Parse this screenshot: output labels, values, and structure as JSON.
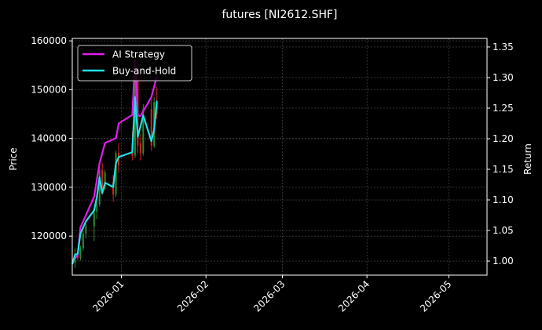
{
  "chart_data": {
    "type": "line",
    "title": "futures [NI2612.SHF]",
    "ylabel_left": "Price",
    "ylabel_right": "Return",
    "x_range": [
      "2025-12-14",
      "2026-05-15"
    ],
    "y_left_range": [
      112000,
      160500
    ],
    "y_right_range": [
      0.977,
      1.364
    ],
    "x_ticks": [
      "2026-01",
      "2026-02",
      "2026-03",
      "2026-04",
      "2026-05"
    ],
    "y_left_ticks": [
      120000,
      130000,
      140000,
      150000,
      160000
    ],
    "y_left_tick_labels": [
      "120000",
      "130000",
      "140000",
      "150000",
      "160000"
    ],
    "y_right_ticks": [
      1.0,
      1.05,
      1.1,
      1.15,
      1.2,
      1.25,
      1.3,
      1.35
    ],
    "y_right_tick_labels": [
      "1.00",
      "1.05",
      "1.10",
      "1.15",
      "1.20",
      "1.25",
      "1.30",
      "1.35"
    ],
    "grid": true,
    "legend_position": "top-left",
    "colors": {
      "background": "#000000",
      "up_candle": "#2e8b2e",
      "down_candle": "#cc2a1f",
      "grid": "#555555"
    },
    "candles": [
      {
        "date": "2025-12-15",
        "open": 114500,
        "high": 117500,
        "low": 113500,
        "close": 116500
      },
      {
        "date": "2025-12-16",
        "open": 116500,
        "high": 117500,
        "low": 115000,
        "close": 115500
      },
      {
        "date": "2025-12-17",
        "open": 115500,
        "high": 118000,
        "low": 115000,
        "close": 117500
      },
      {
        "date": "2025-12-18",
        "open": 117500,
        "high": 121000,
        "low": 117000,
        "close": 120500
      },
      {
        "date": "2025-12-19",
        "open": 120500,
        "high": 123000,
        "low": 119500,
        "close": 122000
      },
      {
        "date": "2025-12-22",
        "open": 122000,
        "high": 125500,
        "low": 119000,
        "close": 125000
      },
      {
        "date": "2025-12-23",
        "open": 125000,
        "high": 127000,
        "low": 123500,
        "close": 126500
      },
      {
        "date": "2025-12-24",
        "open": 126500,
        "high": 134000,
        "low": 126000,
        "close": 133500
      },
      {
        "date": "2025-12-25",
        "open": 133500,
        "high": 135000,
        "low": 128500,
        "close": 130000
      },
      {
        "date": "2025-12-26",
        "open": 130000,
        "high": 133500,
        "low": 129500,
        "close": 133000
      },
      {
        "date": "2025-12-29",
        "open": 131000,
        "high": 132500,
        "low": 127000,
        "close": 128500
      },
      {
        "date": "2025-12-30",
        "open": 128500,
        "high": 137500,
        "low": 128000,
        "close": 137000
      },
      {
        "date": "2025-12-31",
        "open": 137000,
        "high": 139000,
        "low": 133000,
        "close": 134500
      },
      {
        "date": "2026-01-05",
        "open": 139000,
        "high": 141500,
        "low": 135500,
        "close": 136500
      },
      {
        "date": "2026-01-06",
        "open": 136500,
        "high": 157000,
        "low": 136000,
        "close": 156000
      },
      {
        "date": "2026-01-07",
        "open": 155000,
        "high": 157000,
        "low": 137000,
        "close": 138500
      },
      {
        "date": "2026-01-08",
        "open": 139000,
        "high": 141000,
        "low": 135500,
        "close": 137000
      },
      {
        "date": "2026-01-09",
        "open": 137000,
        "high": 147000,
        "low": 136500,
        "close": 146000
      },
      {
        "date": "2026-01-12",
        "open": 146000,
        "high": 148000,
        "low": 137500,
        "close": 138500
      },
      {
        "date": "2026-01-13",
        "open": 138500,
        "high": 148500,
        "low": 138000,
        "close": 147500
      },
      {
        "date": "2026-01-14",
        "open": 147500,
        "high": 150500,
        "low": 144000,
        "close": 145000
      }
    ],
    "series": [
      {
        "name": "AI Strategy",
        "color": "#e11de9",
        "x": [
          "2025-12-14",
          "2025-12-16",
          "2025-12-17",
          "2025-12-22",
          "2025-12-24",
          "2025-12-26",
          "2025-12-30",
          "2025-12-31",
          "2026-01-05",
          "2026-01-06",
          "2026-01-07",
          "2026-01-08",
          "2026-01-12",
          "2026-01-14"
        ],
        "values": [
          1.0,
          1.009,
          1.055,
          1.105,
          1.16,
          1.193,
          1.201,
          1.225,
          1.239,
          1.329,
          1.238,
          1.237,
          1.268,
          1.302
        ]
      },
      {
        "name": "Buy-and-Hold",
        "color": "#21e0e5",
        "x": [
          "2025-12-14",
          "2025-12-15",
          "2025-12-16",
          "2025-12-17",
          "2025-12-19",
          "2025-12-22",
          "2025-12-23",
          "2025-12-24",
          "2025-12-25",
          "2025-12-26",
          "2025-12-29",
          "2025-12-30",
          "2025-12-31",
          "2026-01-05",
          "2026-01-06",
          "2026-01-07",
          "2026-01-09",
          "2026-01-12",
          "2026-01-13",
          "2026-01-14"
        ],
        "values": [
          0.995,
          1.01,
          1.012,
          1.045,
          1.065,
          1.083,
          1.104,
          1.137,
          1.111,
          1.128,
          1.121,
          1.16,
          1.17,
          1.178,
          1.268,
          1.203,
          1.238,
          1.196,
          1.215,
          1.262
        ]
      }
    ]
  }
}
